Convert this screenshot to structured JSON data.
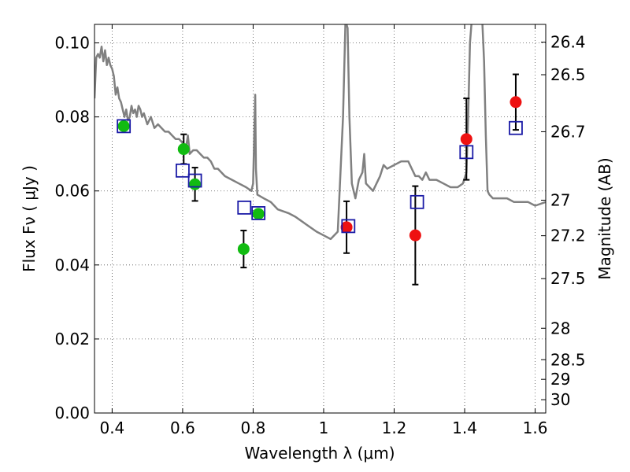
{
  "chart_data": {
    "type": "scatter",
    "xlabel": "Wavelength  λ (μm)",
    "ylabel": "Flux  Fν  ( μJy )",
    "y2label": "Magnitude (AB)",
    "xlim": [
      0.35,
      1.63
    ],
    "ylim": [
      0.0,
      0.105
    ],
    "grid": true,
    "x_ticks": [
      {
        "value": 0.4,
        "label": "0.4"
      },
      {
        "value": 0.6,
        "label": "0.6"
      },
      {
        "value": 0.8,
        "label": "0.8"
      },
      {
        "value": 1.0,
        "label": "1"
      },
      {
        "value": 1.2,
        "label": "1.2"
      },
      {
        "value": 1.4,
        "label": "1.4"
      },
      {
        "value": 1.6,
        "label": "1.6"
      }
    ],
    "y_ticks": [
      {
        "value": 0.0,
        "label": "0.00"
      },
      {
        "value": 0.02,
        "label": "0.02"
      },
      {
        "value": 0.04,
        "label": "0.04"
      },
      {
        "value": 0.06,
        "label": "0.06"
      },
      {
        "value": 0.08,
        "label": "0.08"
      },
      {
        "value": 0.1,
        "label": "0.10"
      }
    ],
    "magnitude_ticks": [
      {
        "flux": 0.1002,
        "label": "26.4"
      },
      {
        "flux": 0.0914,
        "label": "26.5"
      },
      {
        "flux": 0.076,
        "label": "26.7"
      },
      {
        "flux": 0.0575,
        "label": "27"
      },
      {
        "flux": 0.0479,
        "label": "27.2"
      },
      {
        "flux": 0.0363,
        "label": "27.5"
      },
      {
        "flux": 0.0229,
        "label": "28"
      },
      {
        "flux": 0.0144,
        "label": "28.5"
      },
      {
        "flux": 0.0091,
        "label": "29"
      },
      {
        "flux": 0.0036,
        "label": "30"
      }
    ],
    "colors": {
      "model": "#808080",
      "green": "#11bb11",
      "red": "#ee1111",
      "square": "#1a1aa6",
      "errorbar": "#000000",
      "grid": "#555555"
    },
    "model_spectrum": [
      [
        0.35,
        0.085
      ],
      [
        0.355,
        0.096
      ],
      [
        0.36,
        0.097
      ],
      [
        0.365,
        0.096
      ],
      [
        0.37,
        0.099
      ],
      [
        0.375,
        0.095
      ],
      [
        0.38,
        0.098
      ],
      [
        0.385,
        0.094
      ],
      [
        0.39,
        0.096
      ],
      [
        0.395,
        0.094
      ],
      [
        0.4,
        0.093
      ],
      [
        0.405,
        0.091
      ],
      [
        0.41,
        0.086
      ],
      [
        0.415,
        0.088
      ],
      [
        0.42,
        0.085
      ],
      [
        0.425,
        0.084
      ],
      [
        0.43,
        0.082
      ],
      [
        0.435,
        0.08
      ],
      [
        0.44,
        0.082
      ],
      [
        0.445,
        0.079
      ],
      [
        0.45,
        0.08
      ],
      [
        0.455,
        0.083
      ],
      [
        0.46,
        0.081
      ],
      [
        0.465,
        0.082
      ],
      [
        0.47,
        0.08
      ],
      [
        0.475,
        0.083
      ],
      [
        0.48,
        0.082
      ],
      [
        0.485,
        0.08
      ],
      [
        0.49,
        0.081
      ],
      [
        0.5,
        0.078
      ],
      [
        0.51,
        0.08
      ],
      [
        0.52,
        0.077
      ],
      [
        0.53,
        0.078
      ],
      [
        0.54,
        0.077
      ],
      [
        0.55,
        0.076
      ],
      [
        0.56,
        0.076
      ],
      [
        0.57,
        0.075
      ],
      [
        0.58,
        0.074
      ],
      [
        0.59,
        0.074
      ],
      [
        0.6,
        0.073
      ],
      [
        0.61,
        0.072
      ],
      [
        0.615,
        0.075
      ],
      [
        0.62,
        0.07
      ],
      [
        0.63,
        0.071
      ],
      [
        0.64,
        0.071
      ],
      [
        0.65,
        0.07
      ],
      [
        0.66,
        0.069
      ],
      [
        0.67,
        0.069
      ],
      [
        0.68,
        0.068
      ],
      [
        0.69,
        0.066
      ],
      [
        0.7,
        0.066
      ],
      [
        0.72,
        0.064
      ],
      [
        0.74,
        0.063
      ],
      [
        0.76,
        0.062
      ],
      [
        0.78,
        0.061
      ],
      [
        0.795,
        0.06
      ],
      [
        0.8,
        0.062
      ],
      [
        0.804,
        0.078
      ],
      [
        0.806,
        0.086
      ],
      [
        0.808,
        0.066
      ],
      [
        0.812,
        0.059
      ],
      [
        0.83,
        0.058
      ],
      [
        0.85,
        0.057
      ],
      [
        0.87,
        0.055
      ],
      [
        0.9,
        0.054
      ],
      [
        0.92,
        0.053
      ],
      [
        0.95,
        0.051
      ],
      [
        0.98,
        0.049
      ],
      [
        1.0,
        0.048
      ],
      [
        1.02,
        0.047
      ],
      [
        1.04,
        0.049
      ],
      [
        1.055,
        0.08
      ],
      [
        1.062,
        0.106
      ],
      [
        1.068,
        0.104
      ],
      [
        1.073,
        0.08
      ],
      [
        1.08,
        0.062
      ],
      [
        1.09,
        0.058
      ],
      [
        1.1,
        0.063
      ],
      [
        1.11,
        0.065
      ],
      [
        1.115,
        0.07
      ],
      [
        1.12,
        0.062
      ],
      [
        1.13,
        0.061
      ],
      [
        1.14,
        0.06
      ],
      [
        1.15,
        0.062
      ],
      [
        1.16,
        0.064
      ],
      [
        1.17,
        0.067
      ],
      [
        1.18,
        0.066
      ],
      [
        1.2,
        0.067
      ],
      [
        1.22,
        0.068
      ],
      [
        1.24,
        0.068
      ],
      [
        1.25,
        0.066
      ],
      [
        1.26,
        0.064
      ],
      [
        1.27,
        0.064
      ],
      [
        1.28,
        0.063
      ],
      [
        1.29,
        0.065
      ],
      [
        1.3,
        0.063
      ],
      [
        1.32,
        0.063
      ],
      [
        1.34,
        0.062
      ],
      [
        1.36,
        0.061
      ],
      [
        1.38,
        0.061
      ],
      [
        1.395,
        0.062
      ],
      [
        1.405,
        0.065
      ],
      [
        1.41,
        0.08
      ],
      [
        1.415,
        0.1
      ],
      [
        1.42,
        0.106
      ],
      [
        1.44,
        0.106
      ],
      [
        1.45,
        0.106
      ],
      [
        1.455,
        0.095
      ],
      [
        1.46,
        0.075
      ],
      [
        1.465,
        0.06
      ],
      [
        1.47,
        0.059
      ],
      [
        1.48,
        0.058
      ],
      [
        1.5,
        0.058
      ],
      [
        1.52,
        0.058
      ],
      [
        1.54,
        0.057
      ],
      [
        1.56,
        0.057
      ],
      [
        1.58,
        0.057
      ],
      [
        1.6,
        0.056
      ],
      [
        1.63,
        0.057
      ]
    ],
    "squares": [
      {
        "x": 0.433,
        "y": 0.0775
      },
      {
        "x": 0.6,
        "y": 0.0655
      },
      {
        "x": 0.635,
        "y": 0.0628
      },
      {
        "x": 0.775,
        "y": 0.0555
      },
      {
        "x": 0.815,
        "y": 0.054
      },
      {
        "x": 1.07,
        "y": 0.0505
      },
      {
        "x": 1.265,
        "y": 0.057
      },
      {
        "x": 1.405,
        "y": 0.0705
      },
      {
        "x": 1.545,
        "y": 0.077
      }
    ],
    "green_points": [
      {
        "x": 0.433,
        "y": 0.0775,
        "err": 0.0
      },
      {
        "x": 0.603,
        "y": 0.0713,
        "err": 0.004
      },
      {
        "x": 0.635,
        "y": 0.0618,
        "err": 0.0045
      },
      {
        "x": 0.773,
        "y": 0.0443,
        "err": 0.005
      },
      {
        "x": 0.815,
        "y": 0.0538,
        "err": 0.0
      }
    ],
    "red_points": [
      {
        "x": 1.065,
        "y": 0.0502,
        "err": 0.007
      },
      {
        "x": 1.26,
        "y": 0.048,
        "err": 0.0133
      },
      {
        "x": 1.405,
        "y": 0.074,
        "err": 0.011
      },
      {
        "x": 1.545,
        "y": 0.084,
        "err": 0.0075
      }
    ]
  }
}
